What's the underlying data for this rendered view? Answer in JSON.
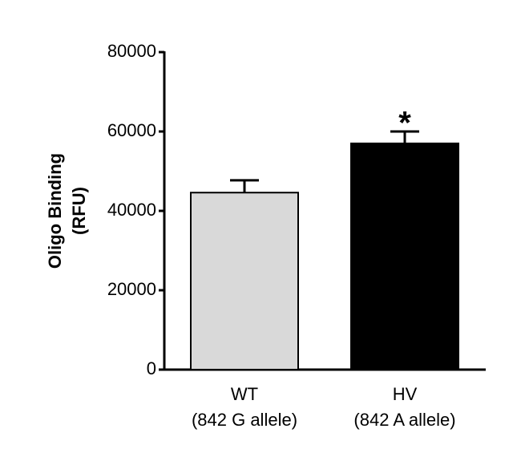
{
  "chart_data": {
    "type": "bar",
    "ylabel": [
      "Oligo Binding",
      "(RFU)"
    ],
    "categories": [
      [
        "WT",
        "(842 G allele)"
      ],
      [
        "HV",
        "(842 A allele)"
      ]
    ],
    "values": [
      44600,
      57000
    ],
    "errors": [
      3100,
      3000
    ],
    "colors": [
      "#d9d9d9",
      "#000000"
    ],
    "annotations": [
      {
        "text": "*",
        "x": "HV"
      }
    ],
    "ylim": [
      0,
      80000
    ],
    "yticks": [
      0,
      20000,
      40000,
      60000,
      80000
    ],
    "grid": false
  }
}
